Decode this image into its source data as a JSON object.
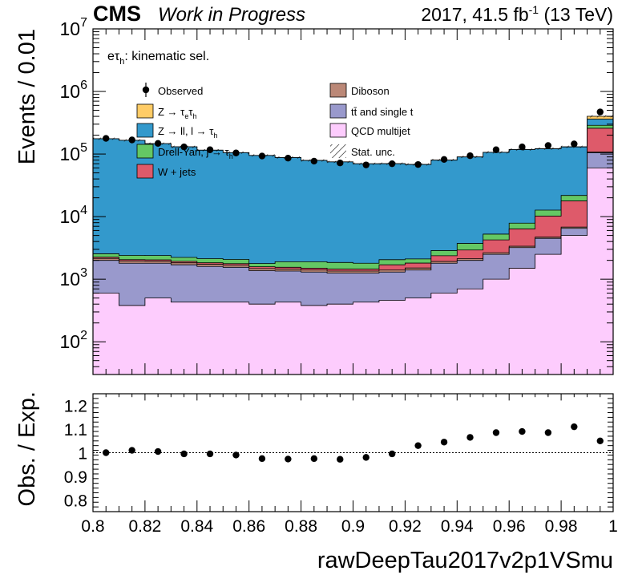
{
  "header": {
    "experiment": "CMS",
    "status": "Work in Progress",
    "lumi_prefix": "2017, 41.5 fb",
    "lumi_exp": "-1",
    "lumi_suffix": " (13 TeV)"
  },
  "chart_data": {
    "type": "stacked-histogram",
    "region_label": "eτ",
    "region_label_sub": "h",
    "region_label_suffix": ": kinematic sel.",
    "xlabel": "rawDeepTau2017v2p1VSmu",
    "ylabel_top": "Events / 0.01",
    "ylabel_bottom": "Obs. / Exp.",
    "xlim": [
      0.8,
      1.0
    ],
    "ylim_top": [
      30,
      10000000
    ],
    "yscale_top": "log",
    "ylim_bottom": [
      0.75,
      1.25
    ],
    "bin_edges": [
      0.8,
      0.81,
      0.82,
      0.83,
      0.84,
      0.85,
      0.86,
      0.87,
      0.88,
      0.89,
      0.9,
      0.91,
      0.92,
      0.93,
      0.94,
      0.95,
      0.96,
      0.97,
      0.98,
      0.99,
      1.0
    ],
    "x_ticks": [
      "0.8",
      "0.82",
      "0.84",
      "0.86",
      "0.88",
      "0.9",
      "0.92",
      "0.94",
      "0.96",
      "0.98",
      "1"
    ],
    "y_ticks_top": [
      {
        "base": "10",
        "exp": "2",
        "value": 100
      },
      {
        "base": "10",
        "exp": "3",
        "value": 1000
      },
      {
        "base": "10",
        "exp": "4",
        "value": 10000
      },
      {
        "base": "10",
        "exp": "5",
        "value": 100000
      },
      {
        "base": "10",
        "exp": "6",
        "value": 1000000
      },
      {
        "base": "10",
        "exp": "7",
        "value": 10000000
      }
    ],
    "y_ticks_bottom": [
      "0.8",
      "0.9",
      "1",
      "1.1",
      "1.2"
    ],
    "stack_order": [
      "qcd",
      "ttbar",
      "diboson",
      "wjets",
      "dy_jtau",
      "z_ll",
      "z_tautau"
    ],
    "series": [
      {
        "key": "qcd",
        "name": "QCD multijet",
        "color": "#fdccfd",
        "values": [
          600,
          380,
          500,
          430,
          430,
          430,
          400,
          430,
          380,
          400,
          430,
          460,
          500,
          600,
          700,
          1000,
          1500,
          2500,
          5000,
          60000
        ]
      },
      {
        "key": "ttbar",
        "name": "tt̄ and single t",
        "color": "#9999cc",
        "values": [
          1400,
          1420,
          1300,
          1270,
          1170,
          1120,
          970,
          920,
          920,
          850,
          820,
          840,
          900,
          1200,
          1300,
          1500,
          1700,
          2000,
          1500,
          45000
        ]
      },
      {
        "key": "diboson",
        "name": "Diboson",
        "color": "#bb8877",
        "values": [
          150,
          150,
          140,
          130,
          130,
          120,
          110,
          100,
          100,
          100,
          100,
          100,
          110,
          120,
          130,
          150,
          160,
          200,
          300,
          3000
        ]
      },
      {
        "key": "wjets",
        "name": "W + jets",
        "color": "#de5a6a",
        "values": [
          100,
          100,
          100,
          100,
          100,
          100,
          100,
          100,
          100,
          100,
          100,
          300,
          300,
          450,
          800,
          1600,
          3000,
          5500,
          11000,
          150000
        ]
      },
      {
        "key": "dy_jtau",
        "name": "Drell-Yan, j → τ",
        "color": "#64c864",
        "values": [
          300,
          350,
          350,
          300,
          300,
          300,
          200,
          350,
          400,
          400,
          350,
          350,
          300,
          500,
          800,
          1000,
          1500,
          2500,
          4000,
          30000
        ]
      },
      {
        "key": "z_ll",
        "name": "Z → ll, l → τ",
        "color": "#3399cc",
        "values": [
          173000,
          163000,
          144000,
          128000,
          113000,
          103000,
          93000,
          86000,
          77000,
          73000,
          68000,
          68000,
          66000,
          77000,
          86000,
          101000,
          110000,
          109000,
          108000,
          73000
        ]
      },
      {
        "key": "z_tautau",
        "name": "Z → ττ",
        "color": "#ffcc66",
        "values": [
          200,
          200,
          200,
          200,
          200,
          200,
          200,
          200,
          200,
          200,
          200,
          200,
          200,
          200,
          200,
          300,
          300,
          400,
          800,
          40000
        ]
      }
    ],
    "observed": {
      "name": "Observed",
      "values": [
        178000,
        168000,
        148000,
        130000,
        117000,
        104000,
        93000,
        86000,
        77000,
        72000,
        67000,
        70000,
        68000,
        82000,
        94000,
        117000,
        130000,
        137000,
        145000,
        470000
      ]
    },
    "ratio": [
      1.0,
      1.01,
      1.005,
      0.995,
      0.995,
      0.99,
      0.975,
      0.973,
      0.975,
      0.972,
      0.98,
      0.995,
      1.03,
      1.045,
      1.065,
      1.085,
      1.09,
      1.085,
      1.11,
      1.05
    ],
    "legend": {
      "left": [
        {
          "key": "observed",
          "type": "marker",
          "name": "Observed"
        },
        {
          "key": "z_tautau",
          "type": "box",
          "name": "Z → τ",
          "sub1": "e",
          "mid": "τ",
          "sub2": "h"
        },
        {
          "key": "z_ll",
          "type": "box",
          "name": "Z → ll, l → τ",
          "sub2": "h"
        },
        {
          "key": "dy_jtau",
          "type": "box",
          "name": "Drell-Yan, j → τ",
          "sub2": "h"
        },
        {
          "key": "wjets",
          "type": "box",
          "name": "W + jets"
        }
      ],
      "right": [
        {
          "key": "diboson",
          "type": "box",
          "name": "Diboson"
        },
        {
          "key": "ttbar",
          "type": "box",
          "name": "tt̄ and single t"
        },
        {
          "key": "qcd",
          "type": "box",
          "name": "QCD multijet"
        },
        {
          "key": "stat",
          "type": "hatch",
          "name": "Stat. unc."
        }
      ]
    }
  }
}
